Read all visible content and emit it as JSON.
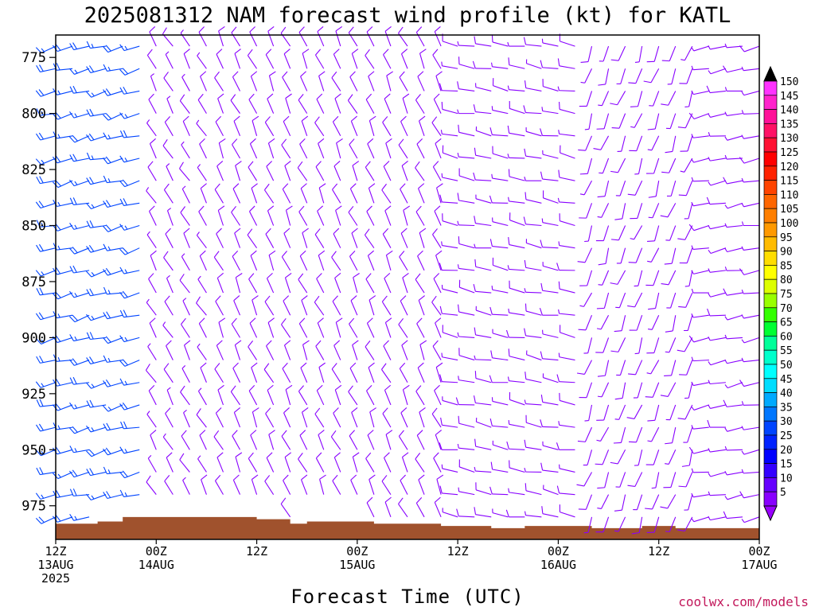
{
  "chart_data": {
    "type": "wind-barb-time-height",
    "title": "2025081312 NAM forecast wind profile (kt) for KATL",
    "xlabel": "Forecast Time (UTC)",
    "credit": "coolwx.com/models",
    "x_ticks": [
      {
        "hour": 0,
        "l1": "12Z",
        "l2": "13AUG",
        "l3": "2025"
      },
      {
        "hour": 12,
        "l1": "00Z",
        "l2": "14AUG",
        "l3": ""
      },
      {
        "hour": 24,
        "l1": "12Z",
        "l2": "",
        "l3": ""
      },
      {
        "hour": 36,
        "l1": "00Z",
        "l2": "15AUG",
        "l3": ""
      },
      {
        "hour": 48,
        "l1": "12Z",
        "l2": "",
        "l3": ""
      },
      {
        "hour": 60,
        "l1": "00Z",
        "l2": "16AUG",
        "l3": ""
      },
      {
        "hour": 72,
        "l1": "12Z",
        "l2": "",
        "l3": ""
      },
      {
        "hour": 84,
        "l1": "00Z",
        "l2": "17AUG",
        "l3": ""
      }
    ],
    "xlim": [
      0,
      84
    ],
    "y_ticks": [
      "775",
      "800",
      "825",
      "850",
      "875",
      "900",
      "925",
      "950",
      "975"
    ],
    "ylim_hpa": [
      765,
      990
    ],
    "colorbar": {
      "levels": [
        "150",
        "145",
        "140",
        "135",
        "130",
        "125",
        "120",
        "115",
        "110",
        "105",
        "100",
        "95",
        "90",
        "85",
        "80",
        "75",
        "70",
        "65",
        "60",
        "55",
        "50",
        "45",
        "40",
        "35",
        "30",
        "25",
        "20",
        "15",
        "10",
        "5"
      ],
      "colors": [
        "#ff33ff",
        "#ff22cc",
        "#ff1199",
        "#ff1166",
        "#ff1133",
        "#ff0000",
        "#ff2200",
        "#ff4400",
        "#ff6600",
        "#ff7f00",
        "#ff9900",
        "#ffbb00",
        "#ffdd00",
        "#ffff00",
        "#ddff00",
        "#99ff00",
        "#33ff00",
        "#00ff33",
        "#00ff99",
        "#00ffcc",
        "#00ffff",
        "#00ddff",
        "#00aaff",
        "#0077ff",
        "#0044ff",
        "#0022ff",
        "#0000ff",
        "#3300ff",
        "#6600ff",
        "#8800ff"
      ],
      "top_arrow_color": "#000000",
      "bottom_arrow_color": "#9900ff"
    },
    "terrain_color": "#a0522d",
    "terrain_pressure": [
      {
        "hour": 0,
        "hpa": 983
      },
      {
        "hour": 5,
        "hpa": 982
      },
      {
        "hour": 8,
        "hpa": 980
      },
      {
        "hour": 12,
        "hpa": 980
      },
      {
        "hour": 16,
        "hpa": 980
      },
      {
        "hour": 20,
        "hpa": 980
      },
      {
        "hour": 24,
        "hpa": 981
      },
      {
        "hour": 28,
        "hpa": 983
      },
      {
        "hour": 30,
        "hpa": 982
      },
      {
        "hour": 38,
        "hpa": 983
      },
      {
        "hour": 46,
        "hpa": 984
      },
      {
        "hour": 52,
        "hpa": 985
      },
      {
        "hour": 56,
        "hpa": 984
      },
      {
        "hour": 60,
        "hpa": 984
      },
      {
        "hour": 64,
        "hpa": 985
      },
      {
        "hour": 70,
        "hpa": 984
      },
      {
        "hour": 74,
        "hpa": 985
      },
      {
        "hour": 78,
        "hpa": 985
      },
      {
        "hour": 84,
        "hpa": 983
      }
    ],
    "wind_field": {
      "units": "kt",
      "time_step_hours": 2,
      "levels_hpa": [
        770,
        780,
        790,
        800,
        810,
        820,
        830,
        840,
        850,
        860,
        870,
        880,
        890,
        900,
        910,
        920,
        930,
        940,
        950,
        960,
        970,
        980
      ],
      "direction_profile_by_period": [
        {
          "hours": [
            0,
            10
          ],
          "dir_deg": 255,
          "speed_kt": 20
        },
        {
          "hours": [
            12,
            18
          ],
          "dir_deg": 330,
          "speed_kt": 10
        },
        {
          "hours": [
            20,
            46
          ],
          "dir_deg": 335,
          "speed_kt": 12
        },
        {
          "hours": [
            48,
            62
          ],
          "dir_deg": 280,
          "speed_kt": 10
        },
        {
          "hours": [
            64,
            76
          ],
          "dir_deg": 200,
          "speed_kt": 10
        },
        {
          "hours": [
            78,
            84
          ],
          "dir_deg": 260,
          "speed_kt": 8
        }
      ]
    }
  }
}
